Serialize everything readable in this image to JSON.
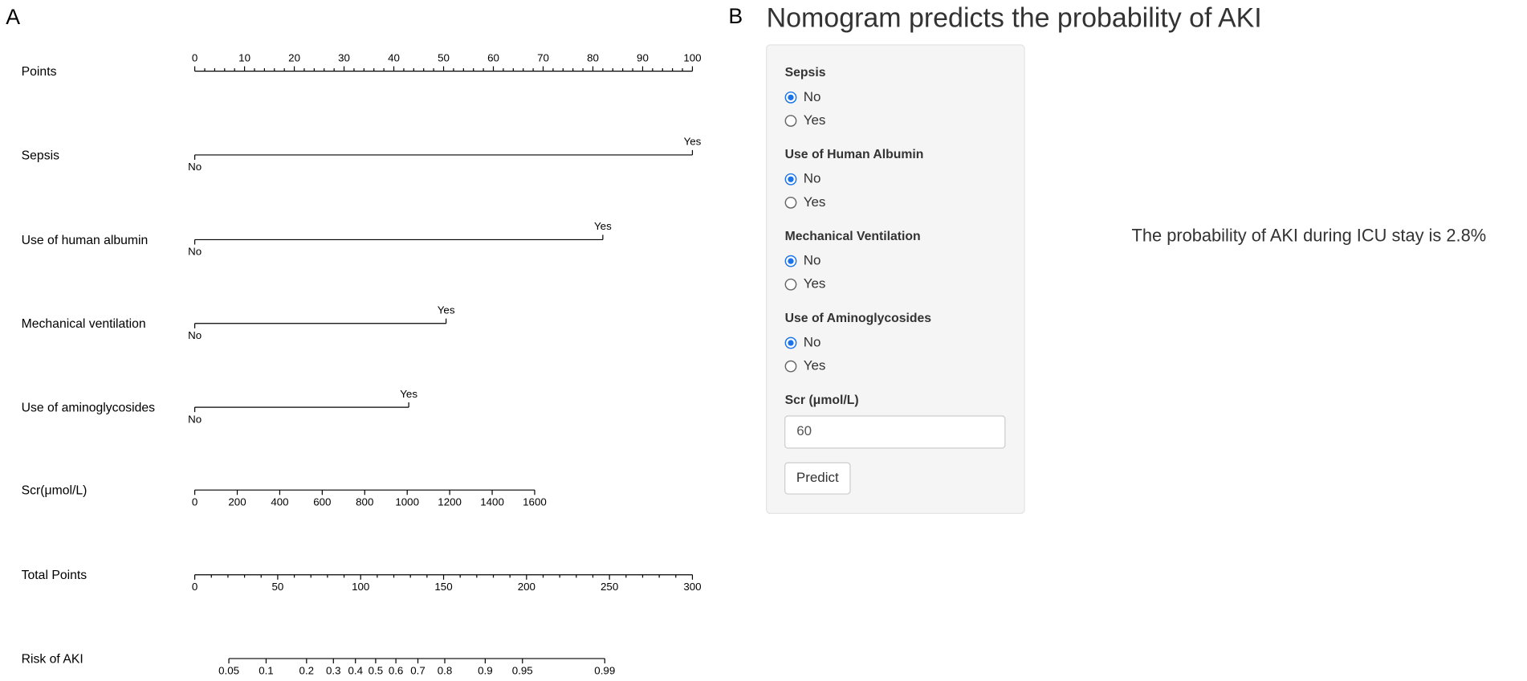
{
  "panel_a": {
    "label": "A",
    "points": {
      "name": "Points",
      "range": [
        0,
        100
      ],
      "ticks": [
        0,
        10,
        20,
        30,
        40,
        50,
        60,
        70,
        80,
        90,
        100
      ]
    },
    "predictors": [
      {
        "name": "Sepsis",
        "levels": [
          {
            "label": "No",
            "points": 0
          },
          {
            "label": "Yes",
            "points": 100
          }
        ]
      },
      {
        "name": "Use of human albumin",
        "levels": [
          {
            "label": "No",
            "points": 0
          },
          {
            "label": "Yes",
            "points": 82
          }
        ]
      },
      {
        "name": "Mechanical ventilation",
        "levels": [
          {
            "label": "No",
            "points": 0
          },
          {
            "label": "Yes",
            "points": 50.5
          }
        ]
      },
      {
        "name": "Use of aminoglycosides",
        "levels": [
          {
            "label": "No",
            "points": 0
          },
          {
            "label": "Yes",
            "points": 43
          }
        ]
      },
      {
        "name": "Scr(μmol/L)",
        "range": [
          0,
          1600
        ],
        "points_range": [
          0,
          68.3
        ],
        "ticks": [
          0,
          200,
          400,
          600,
          800,
          1000,
          1200,
          1400,
          1600
        ]
      }
    ],
    "total_points": {
      "name": "Total Points",
      "range": [
        0,
        300
      ],
      "ticks": [
        0,
        50,
        100,
        150,
        200,
        250,
        300
      ]
    },
    "risk": {
      "name": "Risk of AKI",
      "ticks": [
        0.05,
        0.1,
        0.2,
        0.3,
        0.4,
        0.5,
        0.6,
        0.7,
        0.8,
        0.9,
        0.95,
        0.99
      ]
    }
  },
  "panel_b": {
    "label": "B",
    "title": "Nomogram predicts the probability of AKI",
    "inputs": [
      {
        "label": "Sepsis",
        "options": [
          "No",
          "Yes"
        ],
        "selected": 0
      },
      {
        "label": "Use of Human Albumin",
        "options": [
          "No",
          "Yes"
        ],
        "selected": 0
      },
      {
        "label": "Mechanical Ventilation",
        "options": [
          "No",
          "Yes"
        ],
        "selected": 0
      },
      {
        "label": "Use of Aminoglycosides",
        "options": [
          "No",
          "Yes"
        ],
        "selected": 0
      }
    ],
    "scr": {
      "label": "Scr (μmol/L)",
      "value": "60"
    },
    "button": "Predict",
    "output": "The probability of AKI during ICU stay is 2.8%"
  }
}
